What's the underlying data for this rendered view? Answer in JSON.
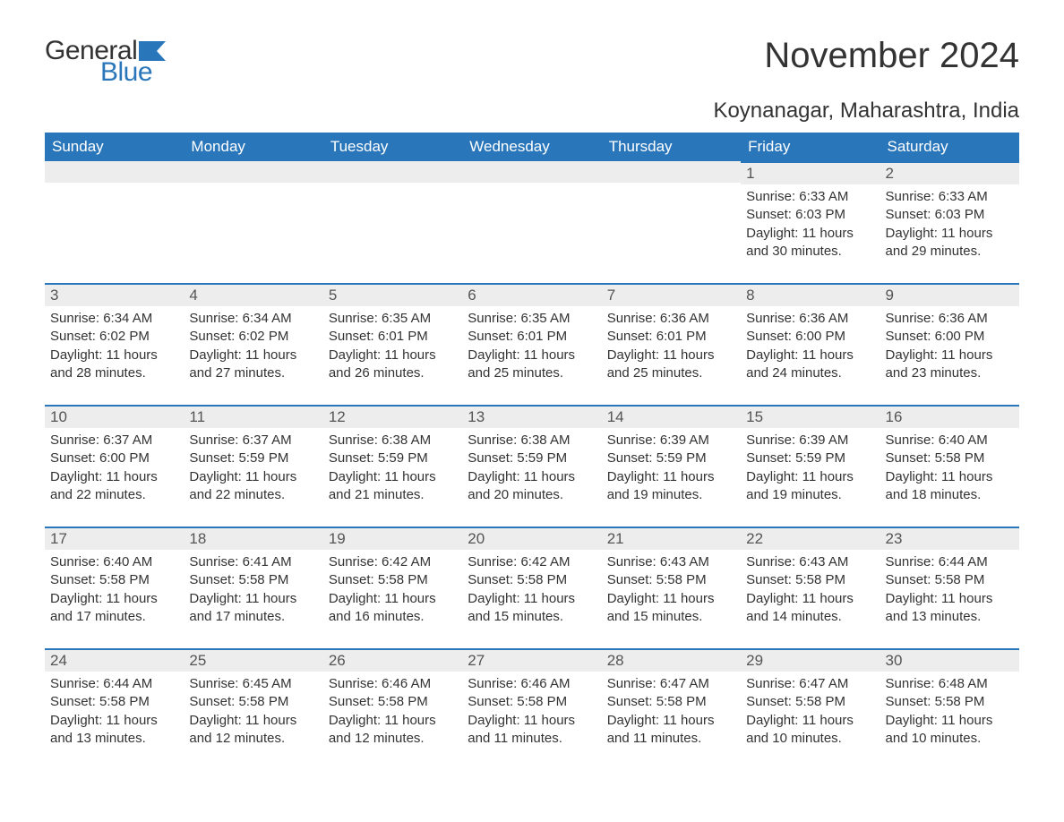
{
  "brand": {
    "part1": "General",
    "part2": "Blue"
  },
  "title": "November 2024",
  "location": "Koynanagar, Maharashtra, India",
  "colors": {
    "header_bg": "#2976bb",
    "header_text": "#ffffff",
    "daynum_bg": "#ededed",
    "daynum_border": "#2976bb",
    "text": "#333333",
    "brand_blue": "#2976bb"
  },
  "weekdays": [
    "Sunday",
    "Monday",
    "Tuesday",
    "Wednesday",
    "Thursday",
    "Friday",
    "Saturday"
  ],
  "weeks": [
    [
      null,
      null,
      null,
      null,
      null,
      {
        "n": "1",
        "sunrise": "6:33 AM",
        "sunset": "6:03 PM",
        "daylight": "11 hours and 30 minutes."
      },
      {
        "n": "2",
        "sunrise": "6:33 AM",
        "sunset": "6:03 PM",
        "daylight": "11 hours and 29 minutes."
      }
    ],
    [
      {
        "n": "3",
        "sunrise": "6:34 AM",
        "sunset": "6:02 PM",
        "daylight": "11 hours and 28 minutes."
      },
      {
        "n": "4",
        "sunrise": "6:34 AM",
        "sunset": "6:02 PM",
        "daylight": "11 hours and 27 minutes."
      },
      {
        "n": "5",
        "sunrise": "6:35 AM",
        "sunset": "6:01 PM",
        "daylight": "11 hours and 26 minutes."
      },
      {
        "n": "6",
        "sunrise": "6:35 AM",
        "sunset": "6:01 PM",
        "daylight": "11 hours and 25 minutes."
      },
      {
        "n": "7",
        "sunrise": "6:36 AM",
        "sunset": "6:01 PM",
        "daylight": "11 hours and 25 minutes."
      },
      {
        "n": "8",
        "sunrise": "6:36 AM",
        "sunset": "6:00 PM",
        "daylight": "11 hours and 24 minutes."
      },
      {
        "n": "9",
        "sunrise": "6:36 AM",
        "sunset": "6:00 PM",
        "daylight": "11 hours and 23 minutes."
      }
    ],
    [
      {
        "n": "10",
        "sunrise": "6:37 AM",
        "sunset": "6:00 PM",
        "daylight": "11 hours and 22 minutes."
      },
      {
        "n": "11",
        "sunrise": "6:37 AM",
        "sunset": "5:59 PM",
        "daylight": "11 hours and 22 minutes."
      },
      {
        "n": "12",
        "sunrise": "6:38 AM",
        "sunset": "5:59 PM",
        "daylight": "11 hours and 21 minutes."
      },
      {
        "n": "13",
        "sunrise": "6:38 AM",
        "sunset": "5:59 PM",
        "daylight": "11 hours and 20 minutes."
      },
      {
        "n": "14",
        "sunrise": "6:39 AM",
        "sunset": "5:59 PM",
        "daylight": "11 hours and 19 minutes."
      },
      {
        "n": "15",
        "sunrise": "6:39 AM",
        "sunset": "5:59 PM",
        "daylight": "11 hours and 19 minutes."
      },
      {
        "n": "16",
        "sunrise": "6:40 AM",
        "sunset": "5:58 PM",
        "daylight": "11 hours and 18 minutes."
      }
    ],
    [
      {
        "n": "17",
        "sunrise": "6:40 AM",
        "sunset": "5:58 PM",
        "daylight": "11 hours and 17 minutes."
      },
      {
        "n": "18",
        "sunrise": "6:41 AM",
        "sunset": "5:58 PM",
        "daylight": "11 hours and 17 minutes."
      },
      {
        "n": "19",
        "sunrise": "6:42 AM",
        "sunset": "5:58 PM",
        "daylight": "11 hours and 16 minutes."
      },
      {
        "n": "20",
        "sunrise": "6:42 AM",
        "sunset": "5:58 PM",
        "daylight": "11 hours and 15 minutes."
      },
      {
        "n": "21",
        "sunrise": "6:43 AM",
        "sunset": "5:58 PM",
        "daylight": "11 hours and 15 minutes."
      },
      {
        "n": "22",
        "sunrise": "6:43 AM",
        "sunset": "5:58 PM",
        "daylight": "11 hours and 14 minutes."
      },
      {
        "n": "23",
        "sunrise": "6:44 AM",
        "sunset": "5:58 PM",
        "daylight": "11 hours and 13 minutes."
      }
    ],
    [
      {
        "n": "24",
        "sunrise": "6:44 AM",
        "sunset": "5:58 PM",
        "daylight": "11 hours and 13 minutes."
      },
      {
        "n": "25",
        "sunrise": "6:45 AM",
        "sunset": "5:58 PM",
        "daylight": "11 hours and 12 minutes."
      },
      {
        "n": "26",
        "sunrise": "6:46 AM",
        "sunset": "5:58 PM",
        "daylight": "11 hours and 12 minutes."
      },
      {
        "n": "27",
        "sunrise": "6:46 AM",
        "sunset": "5:58 PM",
        "daylight": "11 hours and 11 minutes."
      },
      {
        "n": "28",
        "sunrise": "6:47 AM",
        "sunset": "5:58 PM",
        "daylight": "11 hours and 11 minutes."
      },
      {
        "n": "29",
        "sunrise": "6:47 AM",
        "sunset": "5:58 PM",
        "daylight": "11 hours and 10 minutes."
      },
      {
        "n": "30",
        "sunrise": "6:48 AM",
        "sunset": "5:58 PM",
        "daylight": "11 hours and 10 minutes."
      }
    ]
  ],
  "labels": {
    "sunrise": "Sunrise: ",
    "sunset": "Sunset: ",
    "daylight": "Daylight: "
  }
}
